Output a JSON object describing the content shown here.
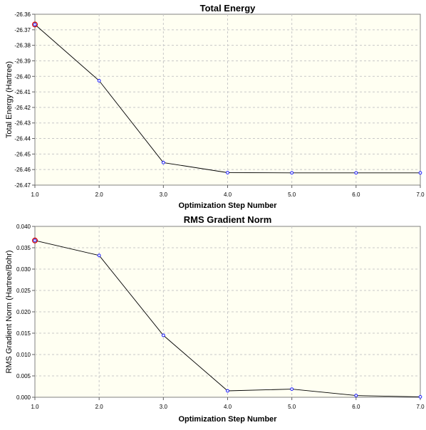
{
  "chart_data": [
    {
      "type": "line",
      "title": "Total Energy",
      "xlabel": "Optimization Step Number",
      "ylabel": "Total Energy (Hartree)",
      "xlim": [
        1.0,
        7.0
      ],
      "ylim": [
        -26.47,
        -26.36
      ],
      "x_ticks": [
        "1.0",
        "2.0",
        "3.0",
        "4.0",
        "5.0",
        "6.0",
        "7.0"
      ],
      "y_ticks": [
        "-26.36",
        "-26.37",
        "-26.38",
        "-26.39",
        "-26.40",
        "-26.41",
        "-26.42",
        "-26.43",
        "-26.44",
        "-26.45",
        "-26.46",
        "-26.47"
      ],
      "x": [
        1,
        2,
        3,
        4,
        5,
        6,
        7
      ],
      "values": [
        -26.3666,
        -26.4028,
        -26.4555,
        -26.462,
        -26.4621,
        -26.4621,
        -26.4621
      ],
      "grid": true,
      "highlight_index": 0,
      "line_color": "#000000",
      "marker_color": "#1a1aff",
      "highlight_color": "#d10000",
      "background": "#fffff2"
    },
    {
      "type": "line",
      "title": "RMS Gradient Norm",
      "xlabel": "Optimization Step Number",
      "ylabel": "RMS Gradient Norm (Hartree/Bohr)",
      "xlim": [
        1.0,
        7.0
      ],
      "ylim": [
        0.0,
        0.04
      ],
      "x_ticks": [
        "1.0",
        "2.0",
        "3.0",
        "4.0",
        "5.0",
        "6.0",
        "7.0"
      ],
      "y_ticks": [
        "0.000",
        "0.005",
        "0.010",
        "0.015",
        "0.020",
        "0.025",
        "0.030",
        "0.035",
        "0.040"
      ],
      "x": [
        1,
        2,
        3,
        4,
        5,
        6,
        7
      ],
      "values": [
        0.0367,
        0.0332,
        0.0145,
        0.0015,
        0.0019,
        0.0004,
        0.0001
      ],
      "grid": true,
      "highlight_index": 0,
      "line_color": "#000000",
      "marker_color": "#1a1aff",
      "highlight_color": "#d10000",
      "background": "#fffff2"
    }
  ]
}
